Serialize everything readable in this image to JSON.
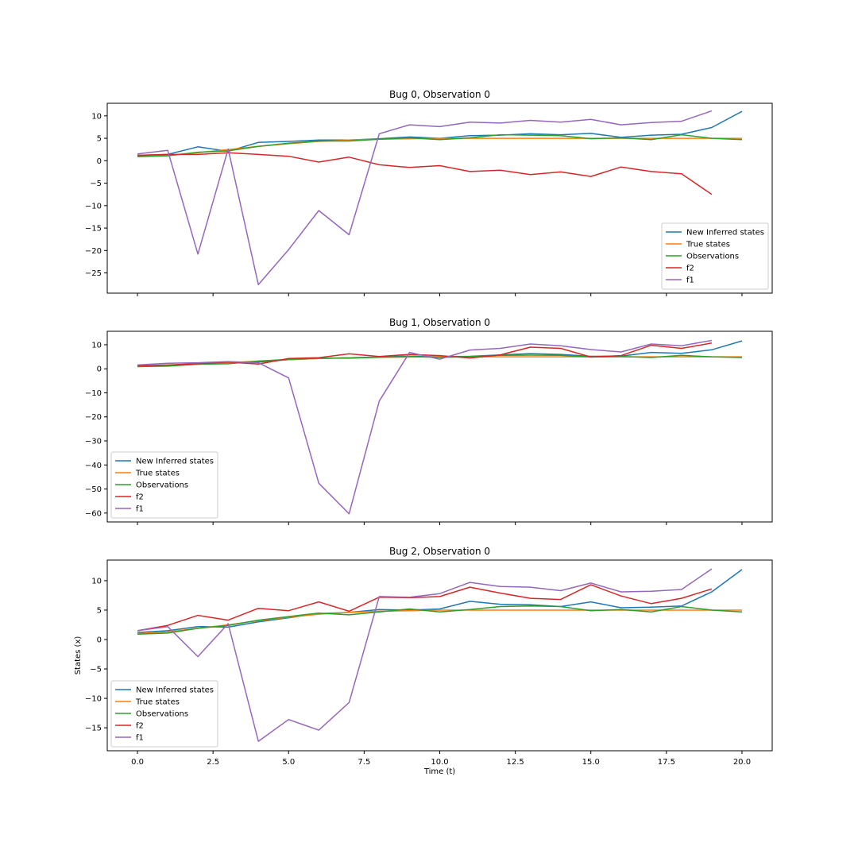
{
  "figure": {
    "xlabel": "Time (t)",
    "ylabel": "States (x)"
  },
  "legend_labels": [
    "New Inferred states",
    "True states",
    "Observations",
    "f2",
    "f1"
  ],
  "chart_data": [
    {
      "type": "line",
      "title": "Bug 0, Observation 0",
      "xlabel": "",
      "ylabel": "",
      "xlim": [
        -1,
        21
      ],
      "ylim": [
        -29.5,
        12.8
      ],
      "xticks": [
        0.0,
        2.5,
        5.0,
        7.5,
        10.0,
        12.5,
        15.0,
        17.5,
        20.0
      ],
      "xtick_labels": [],
      "yticks": [
        10,
        5,
        0,
        -5,
        -10,
        -15,
        -20,
        -25
      ],
      "ytick_labels": [
        "10",
        "5",
        "0",
        "−5",
        "−10",
        "−15",
        "−20",
        "−25"
      ],
      "legend_position": "lower-right",
      "grid": false,
      "series": [
        {
          "name": "New Inferred states",
          "color": "#1f77b4",
          "x": [
            0,
            1,
            2,
            3,
            4,
            5,
            6,
            7,
            8,
            9,
            10,
            11,
            12,
            13,
            14,
            15,
            16,
            17,
            18,
            19,
            20
          ],
          "values": [
            1.2,
            1.4,
            3.1,
            2.1,
            4.1,
            4.3,
            4.6,
            4.6,
            4.9,
            5.3,
            5.0,
            5.6,
            5.7,
            6.0,
            5.8,
            6.1,
            5.2,
            5.7,
            5.9,
            7.4,
            11.0
          ]
        },
        {
          "name": "True states",
          "color": "#ff7f0e",
          "x": [
            0,
            1,
            2,
            3,
            4,
            5,
            6,
            7,
            8,
            9,
            10,
            11,
            12,
            13,
            14,
            15,
            16,
            17,
            18,
            19,
            20
          ],
          "values": [
            1.0,
            1.2,
            1.8,
            2.5,
            3.2,
            3.8,
            4.3,
            4.6,
            4.8,
            4.9,
            5.0,
            5.0,
            5.0,
            5.0,
            5.0,
            5.0,
            5.0,
            5.0,
            5.0,
            5.0,
            5.0
          ]
        },
        {
          "name": "Observations",
          "color": "#2ca02c",
          "x": [
            0,
            1,
            2,
            3,
            4,
            5,
            6,
            7,
            8,
            9,
            10,
            11,
            12,
            13,
            14,
            15,
            16,
            17,
            18,
            19,
            20
          ],
          "values": [
            0.9,
            1.1,
            1.9,
            2.2,
            3.2,
            3.9,
            4.4,
            4.4,
            4.8,
            5.1,
            4.7,
            5.1,
            5.8,
            5.7,
            5.6,
            4.9,
            5.1,
            4.7,
            5.8,
            5.0,
            4.7
          ]
        },
        {
          "name": "f2",
          "color": "#d62728",
          "x": [
            0,
            1,
            2,
            3,
            4,
            5,
            6,
            7,
            8,
            9,
            10,
            11,
            12,
            13,
            14,
            15,
            16,
            17,
            18,
            19
          ],
          "values": [
            1.2,
            1.4,
            1.4,
            1.8,
            1.4,
            1.0,
            -0.3,
            0.8,
            -0.9,
            -1.5,
            -1.1,
            -2.4,
            -2.1,
            -3.1,
            -2.5,
            -3.5,
            -1.4,
            -2.4,
            -2.9,
            -7.5
          ]
        },
        {
          "name": "f1",
          "color": "#9467bd",
          "x": [
            0,
            1,
            2,
            3,
            4,
            5,
            6,
            7,
            8,
            9,
            10,
            11,
            12,
            13,
            14,
            15,
            16,
            17,
            18,
            19
          ],
          "values": [
            1.5,
            2.3,
            -20.8,
            2.6,
            -27.6,
            -19.8,
            -11.1,
            -16.5,
            6.0,
            8.0,
            7.6,
            8.6,
            8.4,
            9.0,
            8.6,
            9.2,
            8.0,
            8.5,
            8.8,
            11.1
          ]
        }
      ]
    },
    {
      "type": "line",
      "title": "Bug 1, Observation 0",
      "xlabel": "",
      "ylabel": "",
      "xlim": [
        -1,
        21
      ],
      "ylim": [
        -63.7,
        15.6
      ],
      "xticks": [
        0.0,
        2.5,
        5.0,
        7.5,
        10.0,
        12.5,
        15.0,
        17.5,
        20.0
      ],
      "xtick_labels": [],
      "yticks": [
        10,
        0,
        -10,
        -20,
        -30,
        -40,
        -50,
        -60
      ],
      "ytick_labels": [
        "10",
        "0",
        "−10",
        "−20",
        "−30",
        "−40",
        "−50",
        "−60"
      ],
      "legend_position": "lower-left",
      "grid": false,
      "series": [
        {
          "name": "New Inferred states",
          "color": "#1f77b4",
          "x": [
            0,
            1,
            2,
            3,
            4,
            5,
            6,
            7,
            8,
            9,
            10,
            11,
            12,
            13,
            14,
            15,
            16,
            17,
            18,
            19,
            20
          ],
          "values": [
            1.2,
            1.5,
            2.2,
            2.5,
            2.8,
            3.8,
            4.3,
            4.6,
            4.9,
            5.3,
            5.0,
            5.2,
            5.8,
            6.3,
            6.0,
            5.2,
            5.3,
            6.8,
            6.4,
            7.9,
            11.6
          ]
        },
        {
          "name": "True states",
          "color": "#ff7f0e",
          "x": [
            0,
            1,
            2,
            3,
            4,
            5,
            6,
            7,
            8,
            9,
            10,
            11,
            12,
            13,
            14,
            15,
            16,
            17,
            18,
            19,
            20
          ],
          "values": [
            1.0,
            1.3,
            1.9,
            2.5,
            3.2,
            3.8,
            4.3,
            4.6,
            4.8,
            4.9,
            5.0,
            5.0,
            5.0,
            5.0,
            5.0,
            5.0,
            5.0,
            5.0,
            5.0,
            5.0,
            5.0
          ]
        },
        {
          "name": "Observations",
          "color": "#2ca02c",
          "x": [
            0,
            1,
            2,
            3,
            4,
            5,
            6,
            7,
            8,
            9,
            10,
            11,
            12,
            13,
            14,
            15,
            16,
            17,
            18,
            19,
            20
          ],
          "values": [
            0.9,
            1.1,
            1.9,
            2.1,
            3.2,
            3.9,
            4.4,
            4.4,
            4.8,
            5.1,
            4.7,
            5.1,
            5.6,
            5.7,
            5.6,
            4.9,
            5.1,
            4.7,
            5.6,
            5.0,
            4.7
          ]
        },
        {
          "name": "f2",
          "color": "#d62728",
          "x": [
            0,
            1,
            2,
            3,
            4,
            5,
            6,
            7,
            8,
            9,
            10,
            11,
            12,
            13,
            14,
            15,
            16,
            17,
            18,
            19
          ],
          "values": [
            1.2,
            1.6,
            2.1,
            2.8,
            2.0,
            4.3,
            4.6,
            6.2,
            5.1,
            6.0,
            5.5,
            4.5,
            5.8,
            9.0,
            8.5,
            4.9,
            5.5,
            9.8,
            8.5,
            10.7
          ]
        },
        {
          "name": "f1",
          "color": "#9467bd",
          "x": [
            0,
            1,
            2,
            3,
            4,
            5,
            6,
            7,
            8,
            9,
            10,
            11,
            12,
            13,
            14,
            15,
            16,
            17,
            18,
            19
          ],
          "values": [
            1.6,
            2.3,
            2.5,
            3.0,
            2.5,
            -3.8,
            -47.6,
            -60.3,
            -13.4,
            6.8,
            4.0,
            7.8,
            8.5,
            10.3,
            9.6,
            8.0,
            7.0,
            10.3,
            9.6,
            11.8
          ]
        }
      ]
    },
    {
      "type": "line",
      "title": "Bug 2, Observation 0",
      "xlabel": "Time (t)",
      "ylabel": "States (x)",
      "xlim": [
        -1,
        21
      ],
      "ylim": [
        -18.9,
        13.5
      ],
      "xticks": [
        0.0,
        2.5,
        5.0,
        7.5,
        10.0,
        12.5,
        15.0,
        17.5,
        20.0
      ],
      "xtick_labels": [
        "0.0",
        "2.5",
        "5.0",
        "7.5",
        "10.0",
        "12.5",
        "15.0",
        "17.5",
        "20.0"
      ],
      "yticks": [
        10,
        5,
        0,
        -5,
        -10,
        -15
      ],
      "ytick_labels": [
        "10",
        "5",
        "0",
        "−5",
        "−10",
        "−15"
      ],
      "legend_position": "lower-left",
      "grid": false,
      "series": [
        {
          "name": "New Inferred states",
          "color": "#1f77b4",
          "x": [
            0,
            1,
            2,
            3,
            4,
            5,
            6,
            7,
            8,
            9,
            10,
            11,
            12,
            13,
            14,
            15,
            16,
            17,
            18,
            19,
            20
          ],
          "values": [
            1.2,
            1.5,
            2.2,
            2.1,
            3.0,
            3.7,
            4.4,
            4.6,
            5.1,
            5.0,
            5.2,
            6.5,
            6.0,
            5.9,
            5.6,
            6.4,
            5.4,
            5.5,
            5.7,
            8.1,
            11.9
          ]
        },
        {
          "name": "True states",
          "color": "#ff7f0e",
          "x": [
            0,
            1,
            2,
            3,
            4,
            5,
            6,
            7,
            8,
            9,
            10,
            11,
            12,
            13,
            14,
            15,
            16,
            17,
            18,
            19,
            20
          ],
          "values": [
            1.0,
            1.3,
            1.9,
            2.5,
            3.2,
            3.8,
            4.3,
            4.6,
            4.8,
            4.9,
            5.0,
            5.0,
            5.0,
            5.0,
            5.0,
            5.0,
            5.0,
            5.0,
            5.0,
            5.0,
            5.0
          ]
        },
        {
          "name": "Observations",
          "color": "#2ca02c",
          "x": [
            0,
            1,
            2,
            3,
            4,
            5,
            6,
            7,
            8,
            9,
            10,
            11,
            12,
            13,
            14,
            15,
            16,
            17,
            18,
            19,
            20
          ],
          "values": [
            0.9,
            1.1,
            1.9,
            2.4,
            3.3,
            3.9,
            4.5,
            4.2,
            4.7,
            5.2,
            4.7,
            5.1,
            5.6,
            5.7,
            5.6,
            4.9,
            5.1,
            4.7,
            5.6,
            5.0,
            4.7
          ]
        },
        {
          "name": "f2",
          "color": "#d62728",
          "x": [
            0,
            1,
            2,
            3,
            4,
            5,
            6,
            7,
            8,
            9,
            10,
            11,
            12,
            13,
            14,
            15,
            16,
            17,
            18,
            19
          ],
          "values": [
            1.5,
            2.4,
            4.1,
            3.3,
            5.3,
            4.9,
            6.4,
            4.8,
            7.2,
            7.1,
            7.3,
            8.9,
            7.9,
            7.0,
            6.8,
            9.3,
            7.4,
            6.1,
            7.0,
            8.6
          ]
        },
        {
          "name": "f1",
          "color": "#9467bd",
          "x": [
            0,
            1,
            2,
            3,
            4,
            5,
            6,
            7,
            8,
            9,
            10,
            11,
            12,
            13,
            14,
            15,
            16,
            17,
            18,
            19
          ],
          "values": [
            1.5,
            2.2,
            -2.9,
            2.7,
            -17.3,
            -13.6,
            -15.4,
            -10.7,
            7.3,
            7.2,
            7.8,
            9.7,
            9.0,
            8.9,
            8.3,
            9.6,
            8.1,
            8.2,
            8.5,
            12.0
          ]
        }
      ]
    }
  ]
}
